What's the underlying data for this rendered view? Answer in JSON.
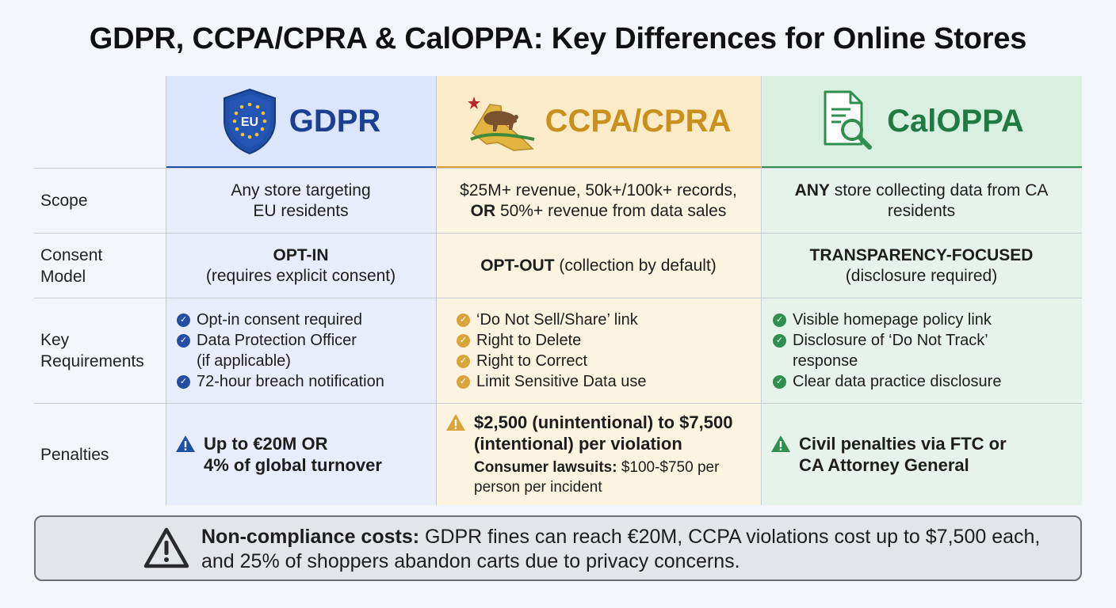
{
  "title": "GDPR, CCPA/CPRA & CalOPPA: Key Differences for Online Stores",
  "columns": {
    "gdpr": {
      "label": "GDPR",
      "badge_text": "EU"
    },
    "ccpa": {
      "label": "CCPA/CPRA"
    },
    "caloppa": {
      "label": "CalOPPA"
    }
  },
  "rows": {
    "scope": {
      "label": "Scope",
      "gdpr": [
        "Any store targeting",
        "EU residents"
      ],
      "ccpa": {
        "line1": "$25M+ revenue, 50k+/100k+ records,",
        "bold2": "OR",
        "line2": " 50%+ revenue from data sales"
      },
      "caloppa": {
        "bold1": "ANY",
        "line1": " store collecting data from CA",
        "line2": "residents"
      }
    },
    "consent": {
      "label_line1": "Consent",
      "label_line2": "Model",
      "gdpr": {
        "bold": "OPT-IN",
        "rest": "(requires explicit consent)"
      },
      "ccpa": {
        "bold": "OPT-OUT",
        "rest": " (collection by default)"
      },
      "caloppa": {
        "bold": "TRANSPARENCY-FOCUSED",
        "rest": "(disclosure required)"
      }
    },
    "requirements": {
      "label_line1": "Key",
      "label_line2": "Requirements",
      "gdpr": [
        "Opt-in consent required",
        "Data Protection Officer",
        "(if applicable)",
        "72-hour breach notification"
      ],
      "ccpa": [
        "‘Do Not Sell/Share’ link",
        "Right to Delete",
        "Right to Correct",
        "Limit Sensitive Data use"
      ],
      "caloppa": [
        "Visible homepage policy link",
        "Disclosure of ‘Do Not Track’",
        "response",
        "Clear data practice disclosure"
      ]
    },
    "penalties": {
      "label": "Penalties",
      "gdpr": [
        "Up to €20M OR",
        "4% of global turnover"
      ],
      "ccpa": {
        "bold_line1": "$2,500 (unintentional) to $7,500",
        "bold_line2": "(intentional) per violation",
        "sub_bold": "Consumer lawsuits:",
        "sub_rest": " $100-$750 per",
        "sub_line2": "person per incident"
      },
      "caloppa": [
        "Civil penalties via FTC or",
        "CA Attorney General"
      ]
    }
  },
  "footer": {
    "bold": "Non-compliance costs:",
    "rest": " GDPR fines can reach €20M, CCPA violations cost up to $7,500 each,",
    "line2": "and 25% of shoppers abandon carts due to privacy concerns."
  },
  "colors": {
    "gdpr_accent": "#1c3f91",
    "ccpa_accent": "#c8901c",
    "caloppa_accent": "#1f7a43"
  }
}
